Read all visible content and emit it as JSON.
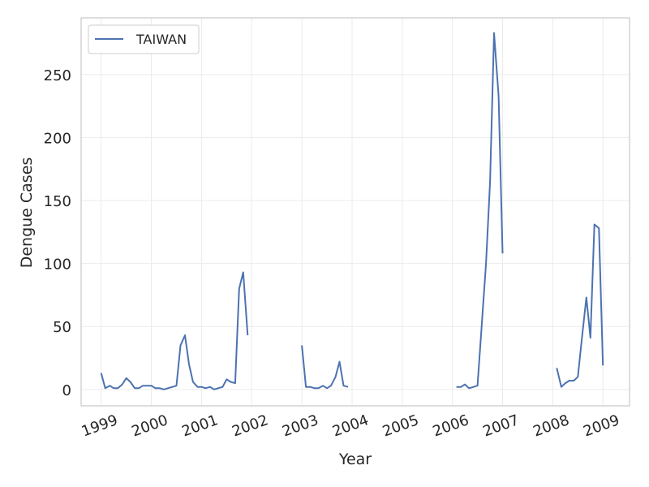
{
  "chart_data": {
    "type": "line",
    "title": "",
    "xlabel": "Year",
    "ylabel": "Dengue Cases",
    "xlim": [
      1998.6,
      2009.53
    ],
    "ylim": [
      -13,
      295
    ],
    "xticks": [
      1999,
      2000,
      2001,
      2002,
      2003,
      2004,
      2005,
      2006,
      2007,
      2008,
      2009
    ],
    "xtick_labels": [
      "1999",
      "2000",
      "2001",
      "2002",
      "2003",
      "2004",
      "2005",
      "2006",
      "2007",
      "2008",
      "2009"
    ],
    "yticks": [
      0,
      50,
      100,
      150,
      200,
      250
    ],
    "ytick_labels": [
      "0",
      "50",
      "100",
      "150",
      "200",
      "250"
    ],
    "grid": true,
    "legend": "top-left",
    "colors": {
      "series": "#4c72b0",
      "grid": "#ebebeb",
      "frame": "#cccccc",
      "text": "#262626"
    },
    "series": [
      {
        "name": "TAIWAN",
        "segments": [
          {
            "x": [
              1999.0,
              1999.08,
              1999.17,
              1999.25,
              1999.33,
              1999.42,
              1999.5,
              1999.58,
              1999.67,
              1999.75,
              1999.83,
              1999.92,
              2000.0,
              2000.08,
              2000.17,
              2000.25,
              2000.33,
              2000.42,
              2000.5,
              2000.58,
              2000.67,
              2000.75,
              2000.83,
              2000.92,
              2001.0,
              2001.08,
              2001.17,
              2001.25,
              2001.33,
              2001.42,
              2001.5,
              2001.58,
              2001.67,
              2001.75,
              2001.83,
              2001.92
            ],
            "y": [
              13,
              1,
              3,
              1,
              1,
              4,
              9,
              6,
              1,
              1,
              3,
              3,
              3,
              1,
              1,
              0,
              1,
              2,
              3,
              35,
              43,
              20,
              6,
              2,
              2,
              1,
              2,
              0,
              1,
              2,
              8,
              6,
              5,
              80,
              93,
              43
            ]
          },
          {
            "x": [
              2003.0,
              2003.08,
              2003.17,
              2003.25,
              2003.33,
              2003.42,
              2003.5,
              2003.58,
              2003.67,
              2003.75,
              2003.83,
              2003.92
            ],
            "y": [
              35,
              2,
              2,
              1,
              1,
              3,
              1,
              3,
              10,
              22,
              3,
              2
            ]
          },
          {
            "x": [
              2006.08,
              2006.17,
              2006.25,
              2006.33,
              2006.42,
              2006.5,
              2006.58,
              2006.67,
              2006.75,
              2006.83,
              2006.92,
              2007.0
            ],
            "y": [
              2,
              2,
              4,
              1,
              2,
              3,
              48,
              100,
              165,
              283,
              233,
              108
            ]
          },
          {
            "x": [
              2008.08,
              2008.17,
              2008.25,
              2008.33,
              2008.42,
              2008.5,
              2008.58,
              2008.67,
              2008.75,
              2008.83,
              2008.92,
              2009.0
            ],
            "y": [
              17,
              2,
              5,
              7,
              7,
              10,
              40,
              73,
              41,
              131,
              128,
              19
            ]
          }
        ]
      }
    ]
  }
}
